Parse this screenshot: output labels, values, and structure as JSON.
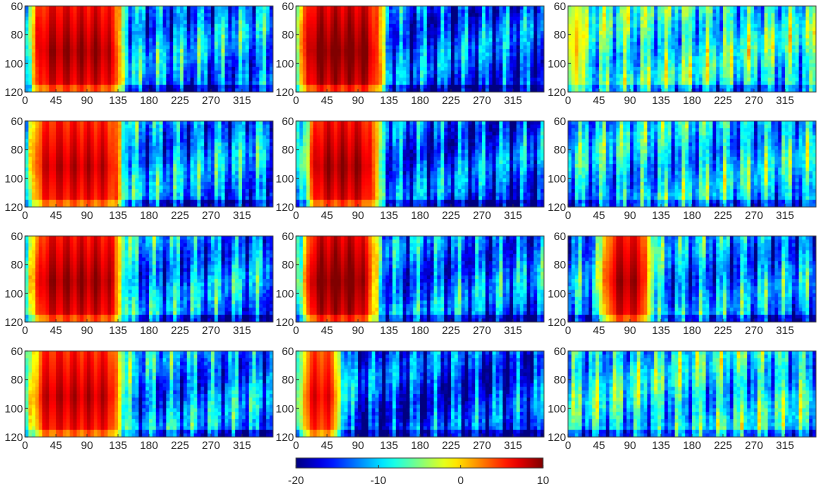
{
  "chart_data": {
    "type": "heatmap",
    "layout": {
      "rows": 4,
      "cols": 3
    },
    "x_ticks": [
      0,
      45,
      90,
      135,
      180,
      225,
      270,
      315
    ],
    "x_range": [
      0,
      360
    ],
    "y_ticks": [
      60,
      80,
      100,
      120
    ],
    "y_range": [
      60,
      120
    ],
    "y_reversed": true,
    "colormap": "jet",
    "colorbar": {
      "ticks": [
        -20,
        -10,
        0,
        10
      ],
      "range": [
        -20,
        10
      ]
    },
    "panels": [
      {
        "row": 1,
        "col": 1,
        "hot_start": 10,
        "hot_end": 140,
        "peak": 9,
        "background": -12
      },
      {
        "row": 1,
        "col": 2,
        "hot_start": 5,
        "hot_end": 125,
        "peak": 10,
        "background": -14
      },
      {
        "row": 1,
        "col": 3,
        "hot_start": 0,
        "hot_end": 20,
        "peak": 2,
        "background": -8
      },
      {
        "row": 2,
        "col": 1,
        "hot_start": 10,
        "hot_end": 140,
        "peak": 8,
        "background": -12
      },
      {
        "row": 2,
        "col": 2,
        "hot_start": 15,
        "hot_end": 120,
        "peak": 9,
        "background": -14
      },
      {
        "row": 2,
        "col": 3,
        "hot_start": 0,
        "hot_end": 0,
        "peak": -5,
        "background": -10
      },
      {
        "row": 3,
        "col": 1,
        "hot_start": 10,
        "hot_end": 140,
        "peak": 9,
        "background": -12
      },
      {
        "row": 3,
        "col": 2,
        "hot_start": 10,
        "hot_end": 115,
        "peak": 10,
        "background": -13
      },
      {
        "row": 3,
        "col": 3,
        "hot_start": 50,
        "hot_end": 120,
        "peak": 9,
        "background": -12
      },
      {
        "row": 4,
        "col": 1,
        "hot_start": 10,
        "hot_end": 140,
        "peak": 8,
        "background": -12
      },
      {
        "row": 4,
        "col": 2,
        "hot_start": 5,
        "hot_end": 65,
        "peak": 7,
        "background": -15
      },
      {
        "row": 4,
        "col": 3,
        "hot_start": 0,
        "hot_end": 0,
        "peak": -5,
        "background": -9
      }
    ]
  }
}
